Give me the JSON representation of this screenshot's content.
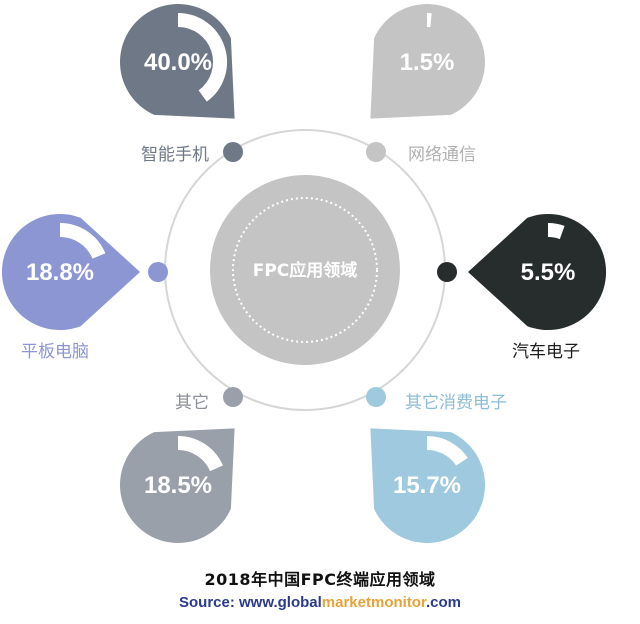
{
  "chart_data": {
    "type": "pie",
    "title": "2018年中国FPC终端应用领域",
    "center_label": "FPC应用领域",
    "segments": [
      {
        "name": "智能手机",
        "value": 40.0,
        "label": "40.0%",
        "color": "#6f7887",
        "label_color": "#6f7887"
      },
      {
        "name": "网络通信",
        "value": 1.5,
        "label": "1.5%",
        "color": "#c4c4c4",
        "label_color": "#b0b0b0"
      },
      {
        "name": "平板电脑",
        "value": 18.8,
        "label": "18.8%",
        "color": "#8b96d3",
        "label_color": "#8b96d3"
      },
      {
        "name": "汽车电子",
        "value": 5.5,
        "label": "5.5%",
        "color": "#262d2c",
        "label_color": "#1c1c1c"
      },
      {
        "name": "其它",
        "value": 18.5,
        "label": "18.5%",
        "color": "#9aa0a9",
        "label_color": "#8a8f97"
      },
      {
        "name": "其它消费电子",
        "value": 15.7,
        "label": "15.7%",
        "color": "#9ec9de",
        "label_color": "#8cbcd6"
      }
    ]
  },
  "source": {
    "prefix": "Source: www.global",
    "highlight1": "market",
    "highlight2": "monitor",
    "suffix": ".com"
  }
}
